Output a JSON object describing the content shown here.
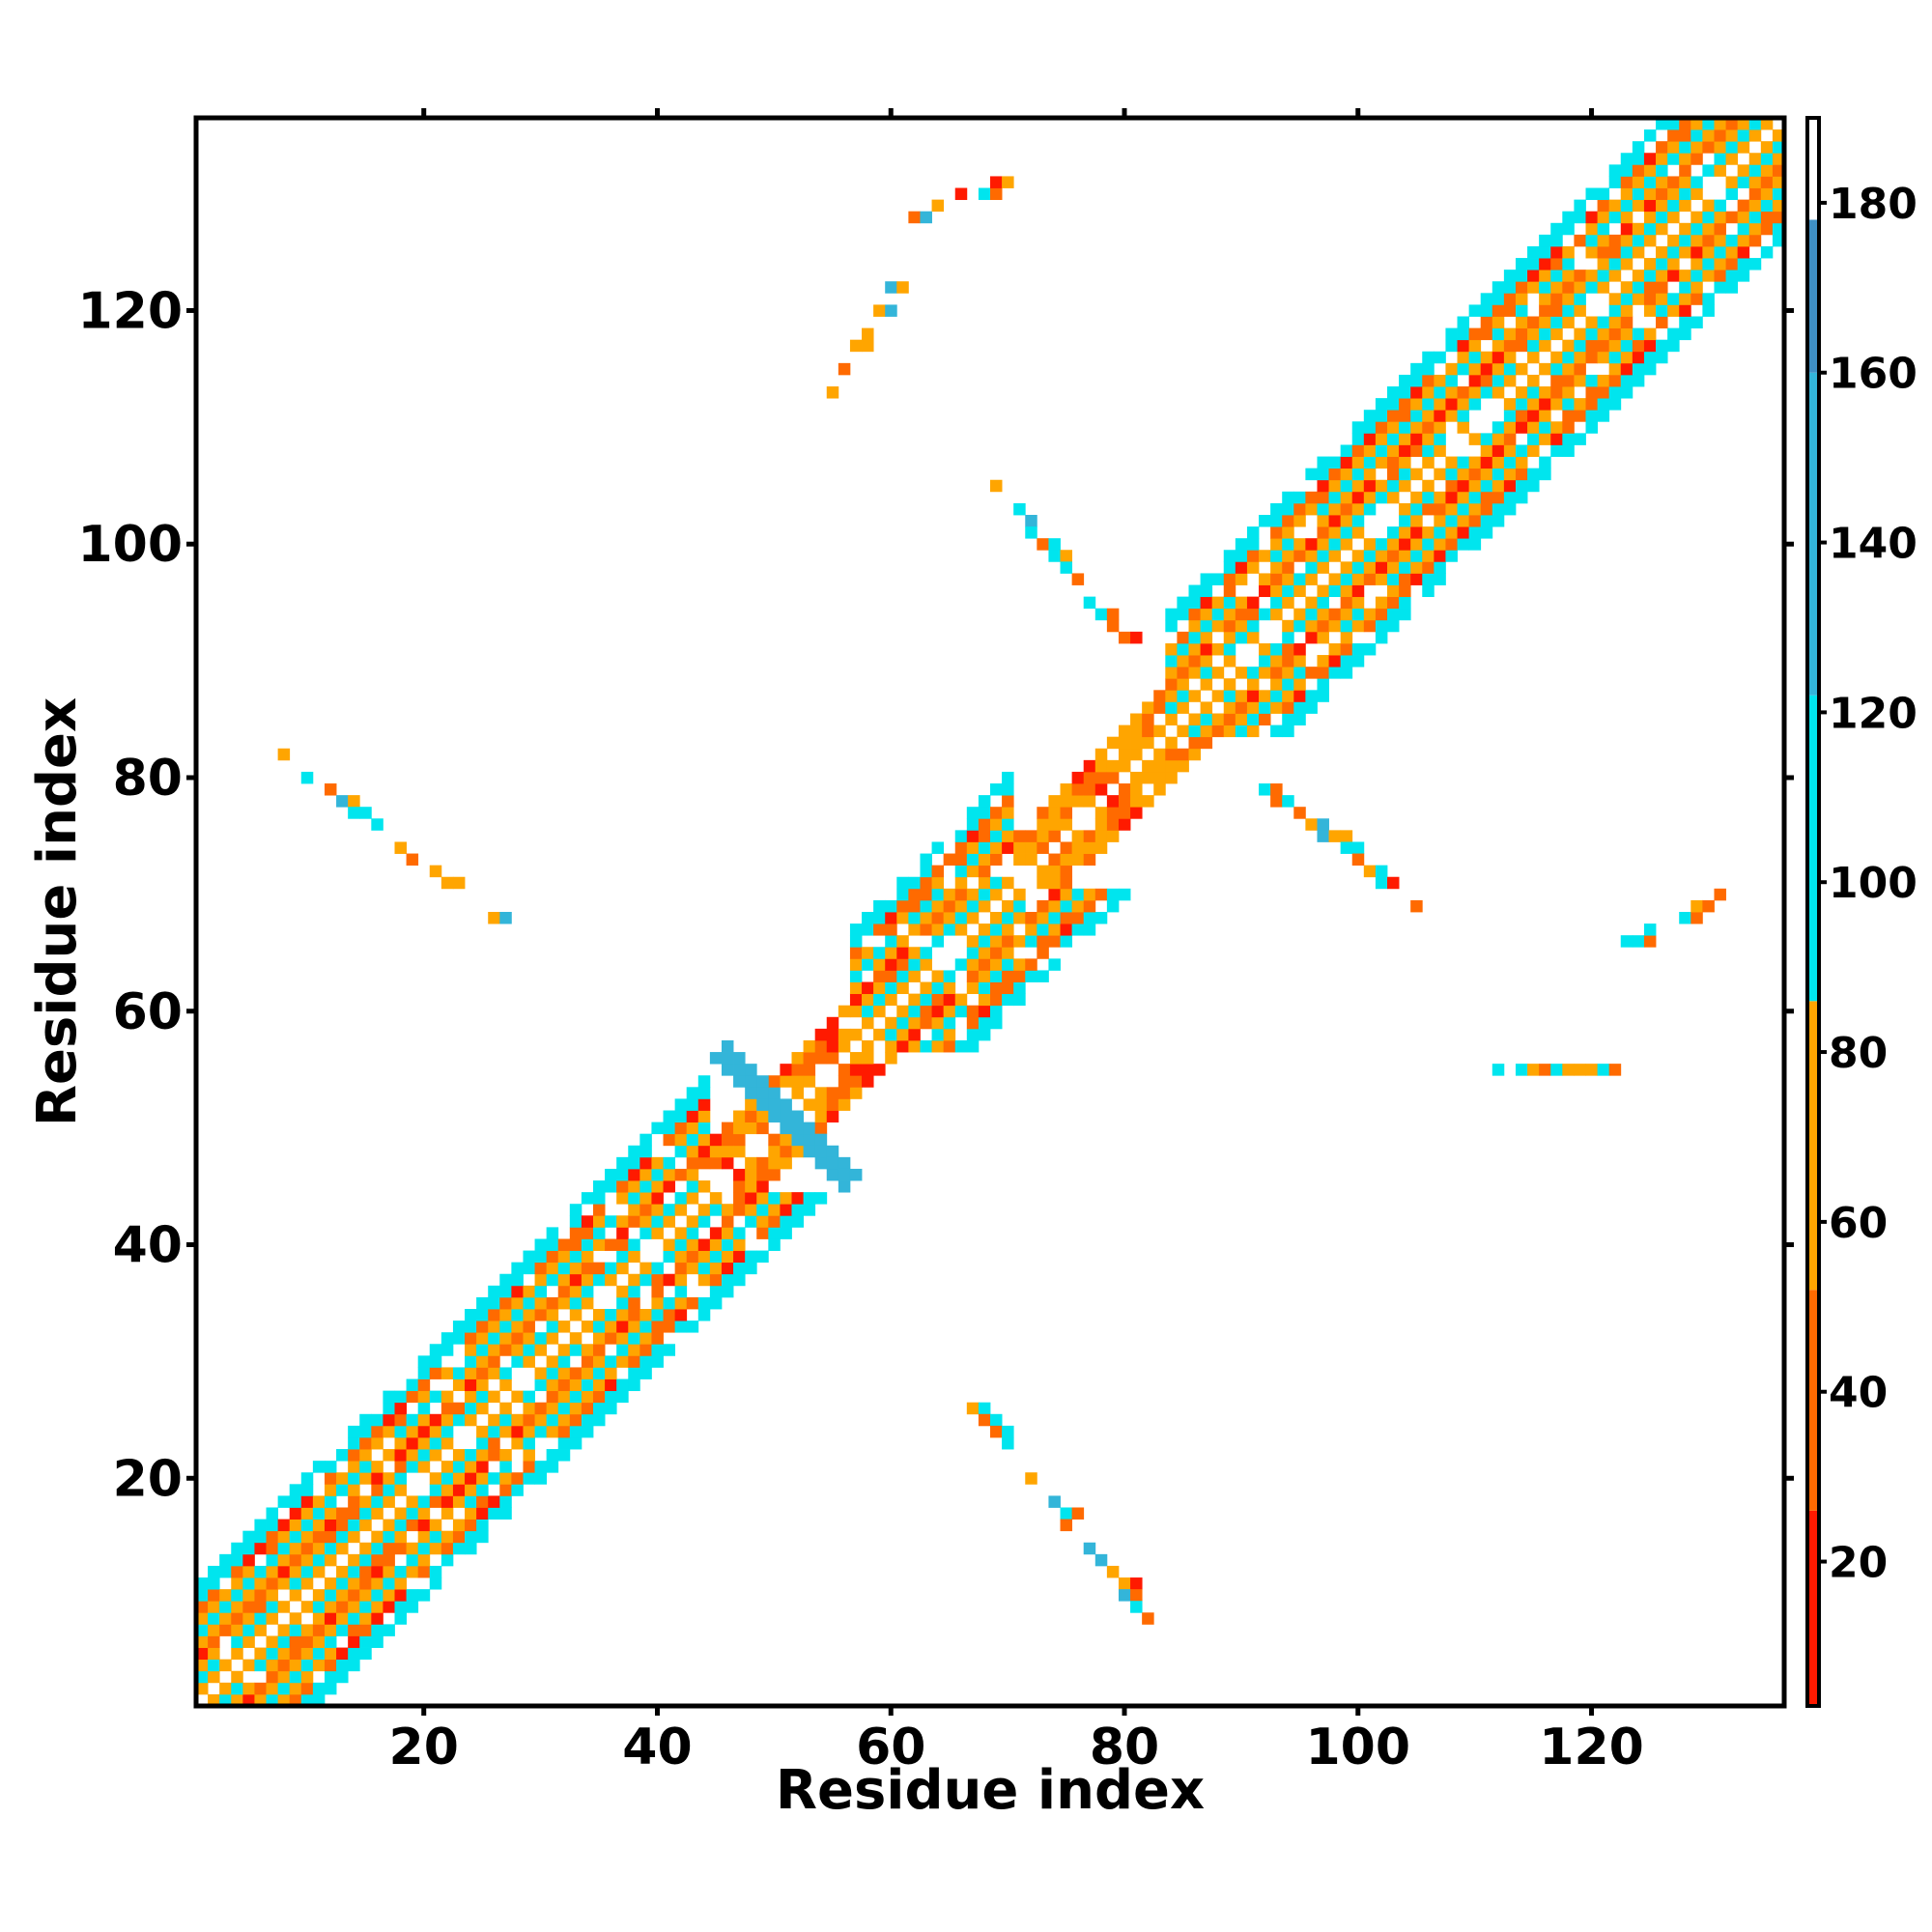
{
  "chart_data": {
    "type": "heatmap",
    "title": "",
    "xlabel": "Residue index",
    "ylabel": "Residue index",
    "xlim": [
      0.5,
      136.5
    ],
    "ylim": [
      0.5,
      136.5
    ],
    "x_ticks": [
      20,
      40,
      60,
      80,
      100,
      120
    ],
    "y_ticks": [
      20,
      40,
      60,
      80,
      100,
      120
    ],
    "colorbar": {
      "range": [
        3,
        190
      ],
      "ticks": [
        20,
        40,
        60,
        80,
        100,
        120,
        140,
        160,
        180
      ],
      "bands": [
        {
          "from": 3,
          "to": 26,
          "color": "#ff1a00"
        },
        {
          "from": 26,
          "to": 52,
          "color": "#ff6a00"
        },
        {
          "from": 52,
          "to": 86,
          "color": "#ffa500"
        },
        {
          "from": 86,
          "to": 122,
          "color": "#00e5ee"
        },
        {
          "from": 122,
          "to": 160,
          "color": "#33b5d9"
        },
        {
          "from": 160,
          "to": 178,
          "color": "#3f8fc4"
        },
        {
          "from": 178,
          "to": 190,
          "color": "#ffffff"
        }
      ]
    },
    "structure": {
      "helix_segments": [
        [
          1,
          44
        ],
        [
          57,
          70
        ],
        [
          84,
          136
        ]
      ],
      "helix_bandwidth": 10,
      "offdiag_segments": [
        {
          "from": [
            8,
            82
          ],
          "to": [
            27,
            67
          ]
        },
        {
          "from": [
            67,
            26
          ],
          "to": [
            82,
            8
          ]
        },
        {
          "from": [
            91,
            80
          ],
          "to": [
            105,
            69
          ]
        },
        {
          "from": [
            69,
            105
          ],
          "to": [
            80,
            92
          ]
        },
        {
          "from": [
            62,
            128
          ],
          "to": [
            70,
            131
          ]
        },
        {
          "from": [
            55,
            112
          ],
          "to": [
            60,
            123
          ]
        },
        {
          "from": [
            112,
            55
          ],
          "to": [
            122,
            55
          ]
        },
        {
          "from": [
            122,
            65
          ],
          "to": [
            131,
            70
          ]
        }
      ],
      "cross_center": [
        51,
        51
      ],
      "cross_extent": 5,
      "cross_value": 140
    }
  }
}
